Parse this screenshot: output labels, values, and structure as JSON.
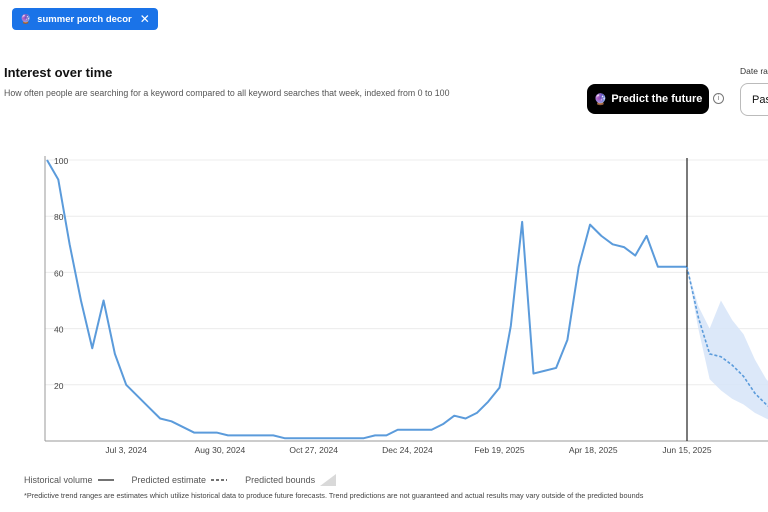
{
  "keyword_chip": {
    "label": "summer porch decor",
    "icon": "sparkle-icon",
    "close_icon": "close-icon"
  },
  "header": {
    "title": "Interest over time",
    "subtitle": "How often people are searching for a keyword compared to all keyword searches that week, indexed from 0 to 100"
  },
  "predict_button": {
    "label": "Predict the future",
    "icon": "sparkle-icon"
  },
  "date_range": {
    "label": "Date ra",
    "value": "Pas"
  },
  "legend": {
    "historical": "Historical volume",
    "estimate": "Predicted estimate",
    "bounds": "Predicted bounds"
  },
  "footnote": "*Predictive trend ranges are estimates which utilize historical data to produce future forecasts. Trend predictions are not guaranteed and actual results may vary outside of the predicted bounds",
  "colors": {
    "accent": "#1a73e8",
    "line": "#5b9bdb",
    "bounds": "#d6e4f8"
  },
  "chart_data": {
    "type": "line",
    "ylim": [
      0,
      100
    ],
    "y_ticks": [
      "100",
      "80",
      "60",
      "40",
      "20"
    ],
    "x_tick_labels": [
      "Jul 3, 2024",
      "Aug 30, 2024",
      "Oct 27, 2024",
      "Dec 24, 2024",
      "Feb 19, 2025",
      "Apr 18, 2025",
      "Jun 15, 2025"
    ],
    "x": [
      "2024-05-15",
      "2024-05-22",
      "2024-05-29",
      "2024-06-05",
      "2024-06-12",
      "2024-06-19",
      "2024-06-26",
      "2024-07-03",
      "2024-07-10",
      "2024-07-17",
      "2024-07-24",
      "2024-07-31",
      "2024-08-07",
      "2024-08-14",
      "2024-08-21",
      "2024-08-28",
      "2024-09-04",
      "2024-09-11",
      "2024-09-18",
      "2024-09-25",
      "2024-10-02",
      "2024-10-09",
      "2024-10-16",
      "2024-10-23",
      "2024-10-30",
      "2024-11-06",
      "2024-11-13",
      "2024-11-20",
      "2024-11-27",
      "2024-12-04",
      "2024-12-11",
      "2024-12-18",
      "2024-12-25",
      "2025-01-01",
      "2025-01-08",
      "2025-01-15",
      "2025-01-22",
      "2025-01-29",
      "2025-02-05",
      "2025-02-12",
      "2025-02-19",
      "2025-02-26",
      "2025-03-05",
      "2025-03-12",
      "2025-03-19",
      "2025-03-26",
      "2025-04-02",
      "2025-04-09",
      "2025-04-16",
      "2025-04-23",
      "2025-04-30",
      "2025-05-07",
      "2025-05-14",
      "2025-05-21",
      "2025-05-28",
      "2025-06-04",
      "2025-06-11",
      "2025-06-15"
    ],
    "series": [
      {
        "values": [
          100,
          93,
          70,
          50,
          33,
          50,
          31,
          20,
          16,
          12,
          8,
          7,
          5,
          3,
          3,
          3,
          2,
          2,
          2,
          2,
          2,
          1,
          1,
          1,
          1,
          1,
          1,
          1,
          1,
          2,
          2,
          4,
          4,
          4,
          4,
          6,
          9,
          8,
          10,
          14,
          19,
          41,
          78,
          24,
          25,
          26,
          36,
          62,
          77,
          73,
          70,
          69,
          66,
          73,
          62,
          62,
          62,
          62
        ]
      }
    ],
    "predicted_estimate": {
      "x": [
        "2025-06-15",
        "2025-06-22",
        "2025-06-29",
        "2025-07-06",
        "2025-07-13",
        "2025-07-20",
        "2025-07-27",
        "2025-08-03",
        "2025-08-10"
      ],
      "values": [
        62,
        44,
        31,
        30,
        27,
        23,
        17,
        13,
        10
      ]
    },
    "predicted_bounds": {
      "x": [
        "2025-06-15",
        "2025-06-22",
        "2025-06-29",
        "2025-07-06",
        "2025-07-13",
        "2025-07-20",
        "2025-07-27",
        "2025-08-03",
        "2025-08-10"
      ],
      "lower": [
        62,
        40,
        22,
        18,
        15,
        13,
        10,
        8,
        6
      ],
      "upper": [
        62,
        48,
        40,
        50,
        43,
        38,
        29,
        22,
        18
      ]
    },
    "today_marker": "2025-06-15"
  }
}
